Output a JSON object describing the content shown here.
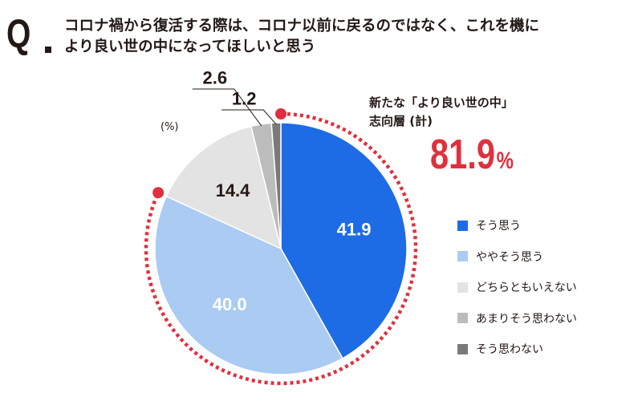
{
  "question": {
    "marker": "Q",
    "line1": "コロナ禍から復活する際は、コロナ以前に戻るのではなく、これを機に",
    "line2": "より良い世の中になってほしいと思う"
  },
  "unit_label": "(%)",
  "callout": {
    "line1": "新たな「より良い世の中」",
    "line2": "志向層 (計)",
    "value": "81.9",
    "unit": "%",
    "color": "#e0303e"
  },
  "chart_data": {
    "type": "pie",
    "title": "コロナ禍から復活する際は、コロナ以前に戻るのではなく、これを機により良い世の中になってほしいと思う",
    "unit": "%",
    "start": "12 o'clock",
    "direction": "clockwise",
    "categories": [
      "そう思う",
      "ややそう思う",
      "どちらともいえない",
      "あまりそう思わない",
      "そう思わない"
    ],
    "values": [
      41.9,
      40.0,
      14.4,
      2.6,
      1.2
    ],
    "data_labels": [
      "41.9",
      "40.0",
      "14.4",
      "2.6",
      "1.2"
    ],
    "colors": [
      "#1e6be6",
      "#aacbf2",
      "#e3e3e3",
      "#bcbcbc",
      "#7a7a7a"
    ],
    "label_colors": [
      "#ffffff",
      "#ffffff",
      "#231815",
      "#231815",
      "#231815"
    ],
    "highlight": {
      "categories": [
        "そう思う",
        "ややそう思う"
      ],
      "total": 81.9
    },
    "legend_position": "right"
  }
}
